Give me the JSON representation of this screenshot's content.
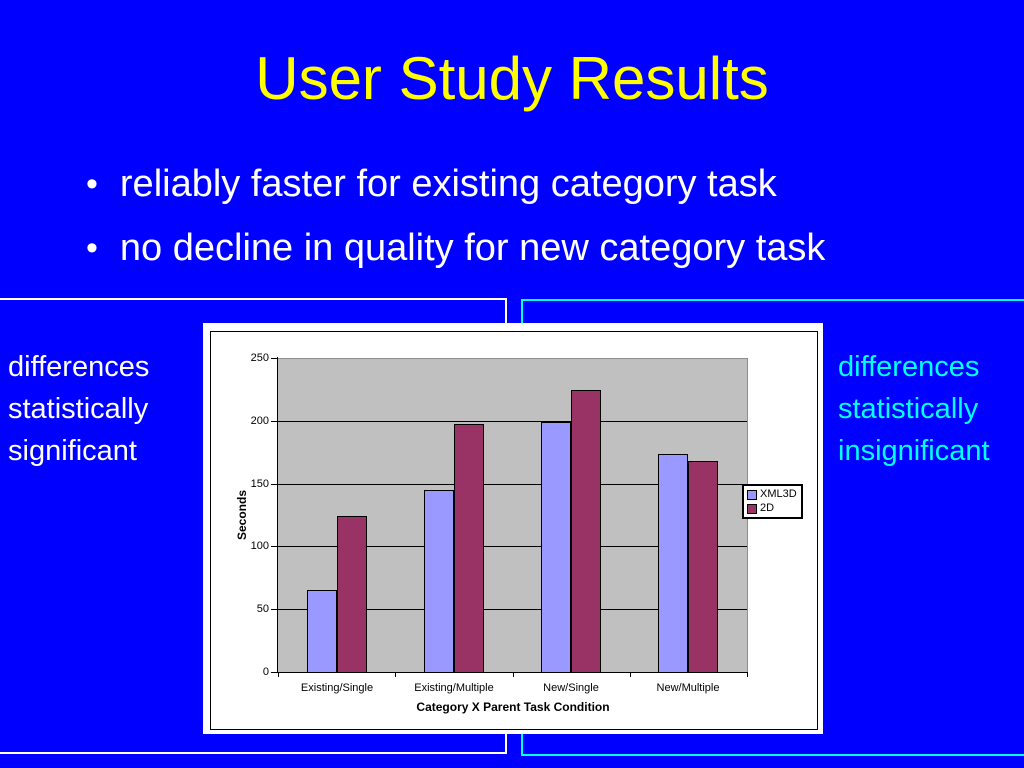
{
  "slide": {
    "title": "User Study Results",
    "bullets": [
      "reliably faster for existing category task",
      "no decline in quality for new category task"
    ],
    "left_note": {
      "lines": [
        "differences",
        "statistically",
        "significant"
      ],
      "color": "#FFFFFF"
    },
    "right_note": {
      "lines": [
        "differences",
        "statistically",
        "insignificant"
      ],
      "color": "#00FFFF"
    },
    "colors": {
      "background": "#0000FE",
      "title": "#FFFF00",
      "bullet_text": "#FFFFFF",
      "left_box_border": "#FFFFFF",
      "right_box_border": "#00FFFF"
    }
  },
  "chart_data": {
    "type": "bar",
    "title": "",
    "categories": [
      "Existing/Single",
      "Existing/Multiple",
      "New/Single",
      "New/Multiple"
    ],
    "series": [
      {
        "name": "XML3D",
        "color": "#9999FF",
        "values": [
          66,
          146,
          200,
          174
        ]
      },
      {
        "name": "2D",
        "color": "#993366",
        "values": [
          125,
          198,
          225,
          169
        ]
      }
    ],
    "xlabel": "Category X Parent Task Condition",
    "ylabel": "Seconds",
    "ylim": [
      0,
      250
    ],
    "yticks": [
      0,
      50,
      100,
      150,
      200,
      250
    ],
    "grid": true,
    "legend_position": "right",
    "plot_bg": "#C0C0C0",
    "chart_bg": "#FFFFFF"
  }
}
